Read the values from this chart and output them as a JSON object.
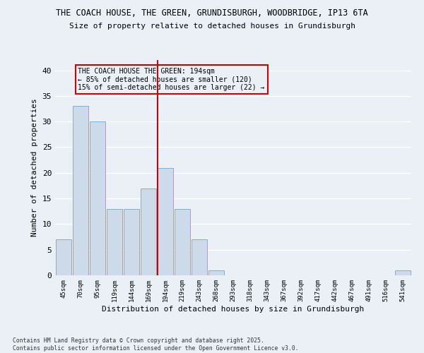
{
  "title1": "THE COACH HOUSE, THE GREEN, GRUNDISBURGH, WOODBRIDGE, IP13 6TA",
  "title2": "Size of property relative to detached houses in Grundisburgh",
  "xlabel": "Distribution of detached houses by size in Grundisburgh",
  "ylabel": "Number of detached properties",
  "categories": [
    "45sqm",
    "70sqm",
    "95sqm",
    "119sqm",
    "144sqm",
    "169sqm",
    "194sqm",
    "219sqm",
    "243sqm",
    "268sqm",
    "293sqm",
    "318sqm",
    "343sqm",
    "367sqm",
    "392sqm",
    "417sqm",
    "442sqm",
    "467sqm",
    "491sqm",
    "516sqm",
    "541sqm"
  ],
  "values": [
    7,
    33,
    30,
    13,
    13,
    17,
    21,
    13,
    7,
    1,
    0,
    0,
    0,
    0,
    0,
    0,
    0,
    0,
    0,
    0,
    1
  ],
  "bar_color": "#ccdaea",
  "bar_edgecolor": "#7fafd0",
  "highlight_index": 6,
  "highlight_line_color": "#cc0000",
  "annotation_text": "THE COACH HOUSE THE GREEN: 194sqm\n← 85% of detached houses are smaller (120)\n15% of semi-detached houses are larger (22) →",
  "annotation_box_edgecolor": "#cc0000",
  "ylim": [
    0,
    42
  ],
  "yticks": [
    0,
    5,
    10,
    15,
    20,
    25,
    30,
    35,
    40
  ],
  "footer": "Contains HM Land Registry data © Crown copyright and database right 2025.\nContains public sector information licensed under the Open Government Licence v3.0.",
  "background_color": "#eaf0f6",
  "grid_color": "#ffffff"
}
